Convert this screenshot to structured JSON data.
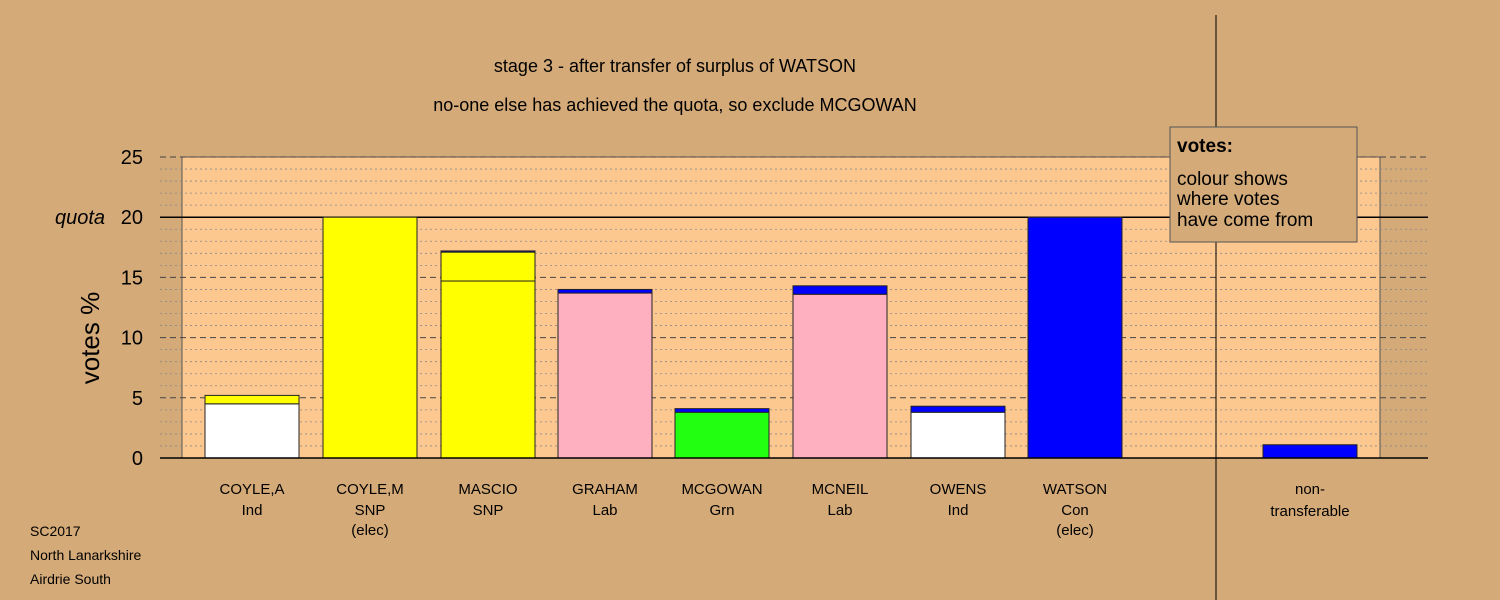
{
  "title": "stage 3 - after transfer of surplus of WATSON",
  "subtitle": "no-one else has achieved the quota, so exclude MCGOWAN",
  "ylabel": "votes %",
  "quota_label": "quota",
  "legend": {
    "heading": "votes:",
    "lines": [
      "colour shows",
      "where votes",
      "have come from"
    ]
  },
  "footer": [
    "SC2017",
    "North Lanarkshire",
    "Airdrie South"
  ],
  "colors": {
    "background": "#d4aa78",
    "plot_area": "#fdc890",
    "Ind": "#ffffff",
    "SNP": "#ffff00",
    "Lab": "#ffb0c0",
    "Grn": "#22ff11",
    "Con": "#0000ff"
  },
  "chart_data": {
    "type": "bar",
    "stacked": true,
    "ylim": [
      0,
      25
    ],
    "yticks": [
      0,
      5,
      10,
      15,
      20,
      25
    ],
    "quota": 20,
    "grid": true,
    "legend_position": "top-right",
    "categories": [
      {
        "name": "COYLE,A",
        "party": "Ind",
        "note": "",
        "segments": [
          {
            "from": "Ind",
            "value": 4.5
          },
          {
            "from": "SNP",
            "value": 0.7
          }
        ]
      },
      {
        "name": "COYLE,M",
        "party": "SNP",
        "note": "(elec)",
        "segments": [
          {
            "from": "SNP",
            "value": 20.0
          }
        ]
      },
      {
        "name": "MASCIO",
        "party": "SNP",
        "note": "",
        "segments": [
          {
            "from": "SNP",
            "value": 14.7
          },
          {
            "from": "SNP",
            "value": 2.4
          },
          {
            "from": "Con",
            "value": 0.1
          }
        ]
      },
      {
        "name": "GRAHAM",
        "party": "Lab",
        "note": "",
        "segments": [
          {
            "from": "Lab",
            "value": 13.7
          },
          {
            "from": "Con",
            "value": 0.3
          }
        ]
      },
      {
        "name": "MCGOWAN",
        "party": "Grn",
        "note": "",
        "segments": [
          {
            "from": "Grn",
            "value": 3.8
          },
          {
            "from": "Con",
            "value": 0.3
          }
        ]
      },
      {
        "name": "MCNEIL",
        "party": "Lab",
        "note": "",
        "segments": [
          {
            "from": "Lab",
            "value": 13.6
          },
          {
            "from": "Con",
            "value": 0.7
          }
        ]
      },
      {
        "name": "OWENS",
        "party": "Ind",
        "note": "",
        "segments": [
          {
            "from": "Ind",
            "value": 3.8
          },
          {
            "from": "Con",
            "value": 0.5
          }
        ]
      },
      {
        "name": "WATSON",
        "party": "Con",
        "note": "(elec)",
        "segments": [
          {
            "from": "Con",
            "value": 20.0
          }
        ]
      }
    ],
    "nontransferable": {
      "label_lines": [
        "non-",
        "transferable"
      ],
      "segments": [
        {
          "from": "Con",
          "value": 1.1
        }
      ]
    }
  }
}
